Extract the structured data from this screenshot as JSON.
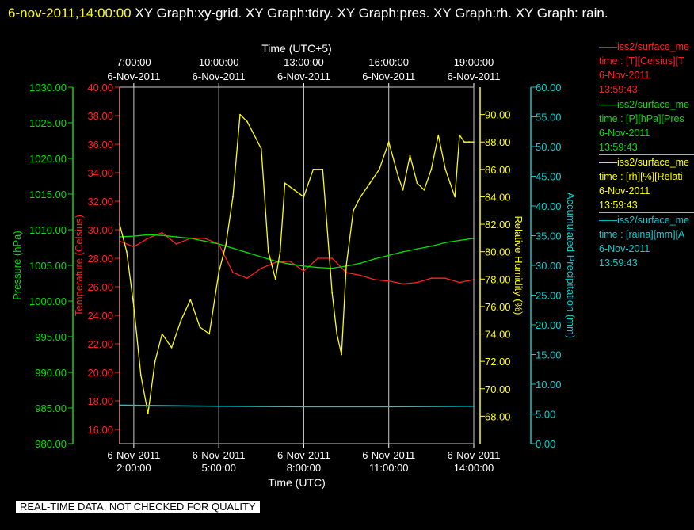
{
  "header": {
    "timestamp": "6-nov-2011,14:00:00",
    "text": "XY Graph:xy-grid.  XY Graph:tdry.  XY Graph:pres.  XY Graph:rh.  XY Graph: rain."
  },
  "notice": "REAL-TIME DATA, NOT CHECKED FOR QUALITY",
  "colors": {
    "background": "#000000",
    "temperature": "#ff2020",
    "pressure": "#00e000",
    "humidity": "#ffff00",
    "precipitation": "#00d0d0",
    "grid": "#c8c8c8"
  },
  "legend": [
    {
      "name": "iss2/surface_me",
      "line2": "time : [T][Celsius][T",
      "date": "6-Nov-2011",
      "time": "13:59:43",
      "color": "#ff2020"
    },
    {
      "name": "iss2/surface_me",
      "line2": "time : [P][hPa][Pres",
      "date": "6-Nov-2011",
      "time": "13:59:43",
      "color": "#00e000"
    },
    {
      "name": "iss2/surface_me",
      "line2": "time : [rh][%][Relati",
      "date": "6-Nov-2011",
      "time": "13:59:43",
      "color": "#ffff00"
    },
    {
      "name": "iss2/surface_me",
      "line2": "time : [raina][mm][A",
      "date": "6-Nov-2011",
      "time": "13:59:43",
      "color": "#00d0d0"
    }
  ],
  "chart_data": {
    "type": "line",
    "xlabel_bottom": "Time (UTC)",
    "xlabel_top": "Time (UTC+5)",
    "x_range": [
      "6-Nov-2011 01:30",
      "6-Nov-2011 14:00"
    ],
    "grid": true,
    "bottom_ticks": [
      {
        "date": "6-Nov-2011",
        "time": "2:00:00"
      },
      {
        "date": "6-Nov-2011",
        "time": "5:00:00"
      },
      {
        "date": "6-Nov-2011",
        "time": "8:00:00"
      },
      {
        "date": "6-Nov-2011",
        "time": "11:00:00"
      },
      {
        "date": "6-Nov-2011",
        "time": "14:00:00"
      }
    ],
    "top_ticks": [
      {
        "time": "7:00:00",
        "date": "6-Nov-2011"
      },
      {
        "time": "10:00:00",
        "date": "6-Nov-2011"
      },
      {
        "time": "13:00:00",
        "date": "6-Nov-2011"
      },
      {
        "time": "16:00:00",
        "date": "6-Nov-2011"
      },
      {
        "time": "19:00:00",
        "date": "6-Nov-2011"
      }
    ],
    "axes": {
      "pressure": {
        "label": "Pressure (hPa)",
        "ylim": [
          980,
          1030
        ],
        "ticks": [
          "980.00",
          "985.00",
          "990.00",
          "995.00",
          "1000.00",
          "1005.00",
          "1010.00",
          "1015.00",
          "1020.00",
          "1025.00",
          "1030.00"
        ]
      },
      "temperature": {
        "label": "Temperature (Celsius)",
        "ylim": [
          15,
          40
        ],
        "ticks": [
          "16.00",
          "18.00",
          "20.00",
          "22.00",
          "24.00",
          "26.00",
          "28.00",
          "30.00",
          "32.00",
          "34.00",
          "36.00",
          "38.00",
          "40.00"
        ]
      },
      "humidity": {
        "label": "Relative Humidity (%)",
        "ylim": [
          66,
          92
        ],
        "ticks": [
          "68.00",
          "70.00",
          "72.00",
          "74.00",
          "76.00",
          "78.00",
          "80.00",
          "82.00",
          "84.00",
          "86.00",
          "88.00",
          "90.00"
        ]
      },
      "precipitation": {
        "label": "Accumulated Precipitation (mm)",
        "ylim": [
          0,
          60
        ],
        "ticks": [
          "0.00",
          "5.00",
          "10.00",
          "15.00",
          "20.00",
          "25.00",
          "30.00",
          "35.00",
          "40.00",
          "45.00",
          "50.00",
          "55.00",
          "60.00"
        ]
      }
    },
    "series": [
      {
        "name": "iss2/surface_me time : [T][Celsius]",
        "axis": "temperature",
        "x": [
          "01:30",
          "02:00",
          "02:30",
          "03:00",
          "03:30",
          "04:00",
          "04:30",
          "05:00",
          "05:30",
          "06:00",
          "06:30",
          "07:00",
          "07:30",
          "08:00",
          "08:30",
          "09:00",
          "09:30",
          "10:00",
          "10:30",
          "11:00",
          "11:30",
          "12:00",
          "12:30",
          "13:00",
          "13:30",
          "14:00"
        ],
        "values": [
          29.2,
          28.8,
          29.4,
          29.8,
          29.0,
          29.4,
          29.4,
          29.0,
          27.0,
          26.6,
          27.3,
          27.7,
          27.8,
          27.1,
          28.0,
          28.0,
          27.0,
          26.8,
          26.5,
          26.4,
          26.2,
          26.3,
          26.6,
          26.6,
          26.3,
          26.5
        ]
      },
      {
        "name": "iss2/surface_me time : [P][hPa]",
        "axis": "pressure",
        "x": [
          "01:30",
          "02:00",
          "02:30",
          "03:00",
          "03:30",
          "04:00",
          "04:30",
          "05:00",
          "05:30",
          "06:00",
          "06:30",
          "07:00",
          "07:30",
          "08:00",
          "08:30",
          "09:00",
          "09:30",
          "10:00",
          "10:30",
          "11:00",
          "11:30",
          "12:00",
          "12:30",
          "13:00",
          "13:30",
          "14:00"
        ],
        "values": [
          1009.0,
          1009.1,
          1009.3,
          1009.2,
          1009.0,
          1008.8,
          1008.4,
          1008.0,
          1007.4,
          1006.8,
          1006.2,
          1005.6,
          1005.2,
          1004.9,
          1004.7,
          1004.6,
          1004.9,
          1005.3,
          1005.9,
          1006.4,
          1006.9,
          1007.3,
          1007.7,
          1008.2,
          1008.5,
          1008.8
        ]
      },
      {
        "name": "iss2/surface_me time : [rh][%]",
        "axis": "humidity",
        "x": [
          "01:30",
          "01:45",
          "02:00",
          "02:15",
          "02:30",
          "02:45",
          "03:00",
          "03:20",
          "03:40",
          "04:00",
          "04:20",
          "04:40",
          "05:00",
          "05:15",
          "05:30",
          "05:45",
          "06:00",
          "06:15",
          "06:30",
          "06:45",
          "07:00",
          "07:10",
          "07:20",
          "07:40",
          "08:00",
          "08:20",
          "08:40",
          "09:00",
          "09:10",
          "09:20",
          "09:30",
          "09:45",
          "10:00",
          "10:20",
          "10:40",
          "11:00",
          "11:20",
          "11:30",
          "11:45",
          "12:00",
          "12:15",
          "12:30",
          "12:45",
          "13:00",
          "13:10",
          "13:20",
          "13:30",
          "13:40",
          "13:50",
          "14:00"
        ],
        "values": [
          82.0,
          80.0,
          76.0,
          71.0,
          68.2,
          72.0,
          74.0,
          73.0,
          75.0,
          76.5,
          74.5,
          74.0,
          78.5,
          80.5,
          84.0,
          90.0,
          89.5,
          88.5,
          87.5,
          80.0,
          78.0,
          80.0,
          85.0,
          84.5,
          84.0,
          86.0,
          86.0,
          77.0,
          74.0,
          72.5,
          79.0,
          83.0,
          84.0,
          85.0,
          86.0,
          88.0,
          85.5,
          84.5,
          87.0,
          85.0,
          84.5,
          86.0,
          88.5,
          86.0,
          85.0,
          84.0,
          88.5,
          88.0,
          88.0,
          88.0
        ]
      },
      {
        "name": "iss2/surface_me time : [raina][mm]",
        "axis": "precipitation",
        "x": [
          "01:30",
          "05:00",
          "08:00",
          "11:00",
          "14:00"
        ],
        "values": [
          6.5,
          6.3,
          6.2,
          6.2,
          6.3
        ]
      }
    ]
  }
}
